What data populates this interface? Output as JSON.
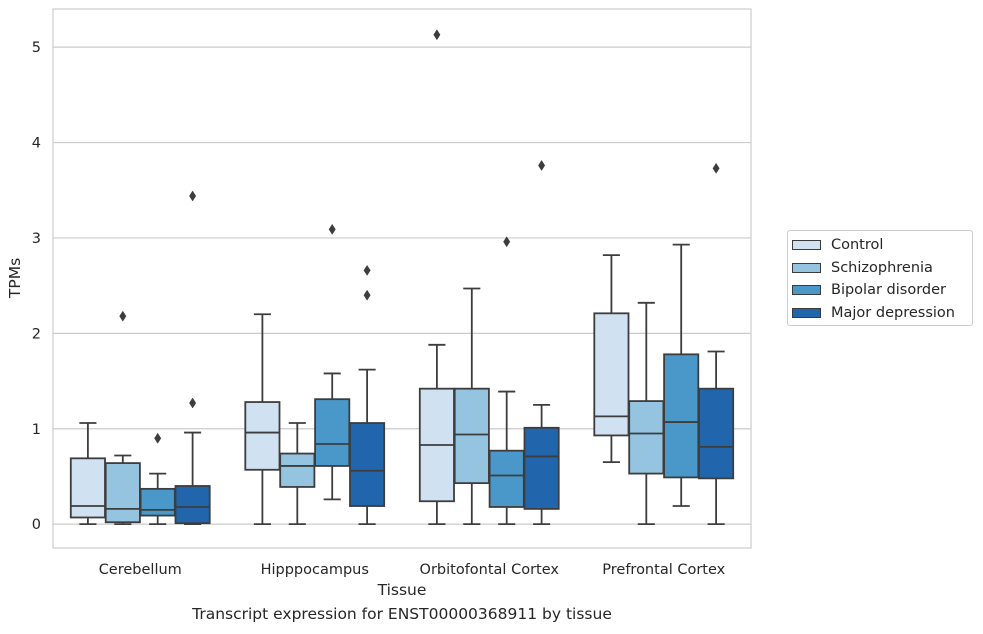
{
  "chart_data": {
    "type": "box",
    "title": "",
    "caption": "Transcript expression for ENST00000368911 by tissue",
    "xlabel": "Tissue",
    "ylabel": "TPMs",
    "ylim": [
      -0.25,
      5.4
    ],
    "yticks": [
      0,
      1,
      2,
      3,
      4,
      5
    ],
    "grid": true,
    "legend_placement": "right",
    "categories": [
      "Cerebellum",
      "Hipppocampus",
      "Orbitofontal Cortex",
      "Prefrontal Cortex"
    ],
    "series": [
      {
        "name": "Control",
        "color": "#d0e1f2",
        "boxes": [
          {
            "whislo": 0.0,
            "q1": 0.07,
            "med": 0.19,
            "q3": 0.69,
            "whishi": 1.06,
            "fliers": []
          },
          {
            "whislo": 0.0,
            "q1": 0.57,
            "med": 0.96,
            "q3": 1.28,
            "whishi": 2.2,
            "fliers": []
          },
          {
            "whislo": 0.0,
            "q1": 0.24,
            "med": 0.83,
            "q3": 1.42,
            "whishi": 1.88,
            "fliers": [
              5.13
            ]
          },
          {
            "whislo": 0.65,
            "q1": 0.93,
            "med": 1.13,
            "q3": 2.21,
            "whishi": 2.82,
            "fliers": []
          }
        ]
      },
      {
        "name": "Schizophrenia",
        "color": "#94c4df",
        "boxes": [
          {
            "whislo": 0.0,
            "q1": 0.02,
            "med": 0.16,
            "q3": 0.64,
            "whishi": 0.72,
            "fliers": [
              2.18
            ]
          },
          {
            "whislo": 0.0,
            "q1": 0.39,
            "med": 0.61,
            "q3": 0.74,
            "whishi": 1.06,
            "fliers": []
          },
          {
            "whislo": 0.0,
            "q1": 0.43,
            "med": 0.94,
            "q3": 1.42,
            "whishi": 2.47,
            "fliers": []
          },
          {
            "whislo": 0.0,
            "q1": 0.53,
            "med": 0.95,
            "q3": 1.29,
            "whishi": 2.32,
            "fliers": []
          }
        ]
      },
      {
        "name": "Bipolar disorder",
        "color": "#4a98c9",
        "boxes": [
          {
            "whislo": 0.0,
            "q1": 0.09,
            "med": 0.15,
            "q3": 0.37,
            "whishi": 0.53,
            "fliers": [
              0.9
            ]
          },
          {
            "whislo": 0.26,
            "q1": 0.61,
            "med": 0.84,
            "q3": 1.31,
            "whishi": 1.58,
            "fliers": [
              3.09
            ]
          },
          {
            "whislo": 0.0,
            "q1": 0.18,
            "med": 0.51,
            "q3": 0.77,
            "whishi": 1.39,
            "fliers": [
              2.96
            ]
          },
          {
            "whislo": 0.19,
            "q1": 0.49,
            "med": 1.07,
            "q3": 1.78,
            "whishi": 2.93,
            "fliers": []
          }
        ]
      },
      {
        "name": "Major depression",
        "color": "#2166ac",
        "boxes": [
          {
            "whislo": 0.0,
            "q1": 0.01,
            "med": 0.18,
            "q3": 0.4,
            "whishi": 0.96,
            "fliers": [
              1.27,
              3.44
            ]
          },
          {
            "whislo": 0.0,
            "q1": 0.19,
            "med": 0.56,
            "q3": 1.06,
            "whishi": 1.62,
            "fliers": [
              2.4,
              2.66
            ]
          },
          {
            "whislo": 0.0,
            "q1": 0.16,
            "med": 0.71,
            "q3": 1.01,
            "whishi": 1.25,
            "fliers": [
              3.76
            ]
          },
          {
            "whislo": 0.0,
            "q1": 0.48,
            "med": 0.81,
            "q3": 1.42,
            "whishi": 1.81,
            "fliers": [
              3.73
            ]
          }
        ]
      }
    ]
  }
}
